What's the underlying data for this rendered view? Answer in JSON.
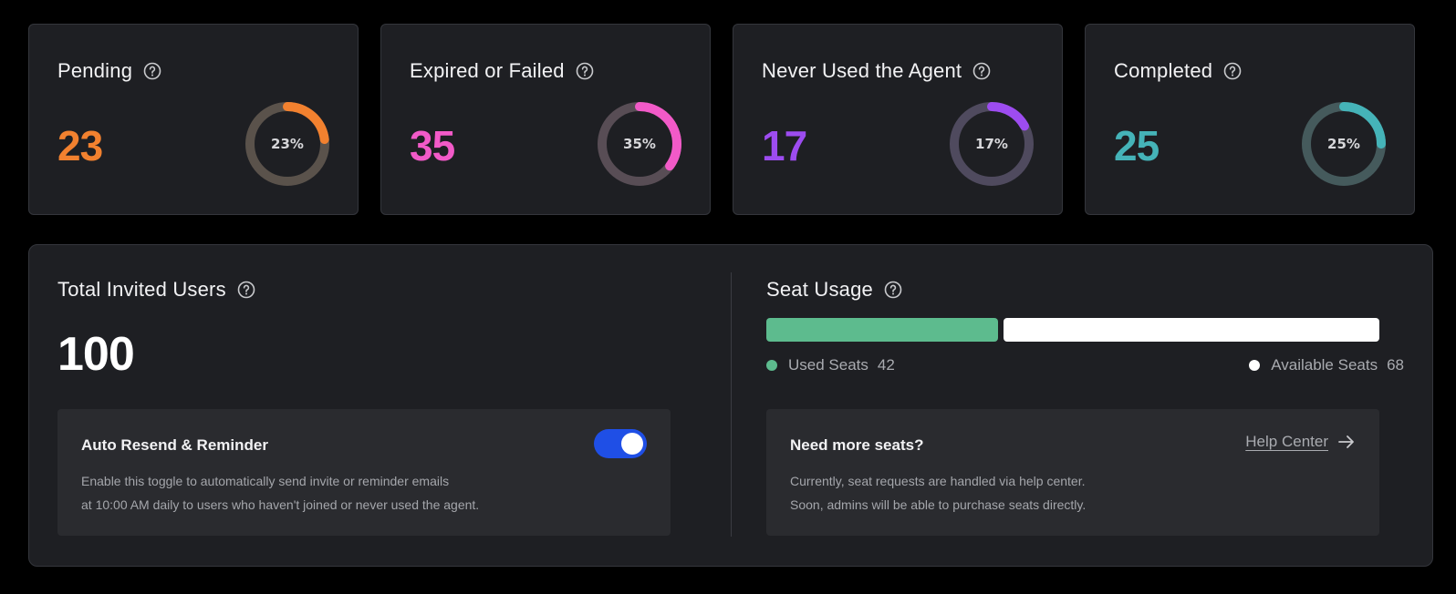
{
  "cards": [
    {
      "title": "Pending",
      "value": "23",
      "percent_label": "23%",
      "percent": 23,
      "color": "#f2812f",
      "track": "#5a524b"
    },
    {
      "title": "Expired or Failed",
      "value": "35",
      "percent_label": "35%",
      "percent": 35,
      "color": "#f25ac8",
      "track": "#584d55"
    },
    {
      "title": "Never Used the Agent",
      "value": "17",
      "percent_label": "17%",
      "percent": 17,
      "color": "#9d4cf0",
      "track": "#4f4a5e"
    },
    {
      "title": "Completed",
      "value": "25",
      "percent_label": "25%",
      "percent": 25,
      "color": "#45b3b8",
      "track": "#455a5c"
    }
  ],
  "total": {
    "title": "Total Invited Users",
    "value": "100",
    "auto_resend": {
      "title": "Auto Resend & Reminder",
      "line1": "Enable this toggle to automatically send invite or reminder emails",
      "line2": "at 10:00 AM daily to users who haven't joined or never used the agent.",
      "enabled": true
    }
  },
  "seats": {
    "title": "Seat Usage",
    "used_label": "Used Seats",
    "used_value": "42",
    "used": 42,
    "available_label": "Available Seats",
    "available_value": "68",
    "available": 68,
    "used_color": "#5dbb8e",
    "available_color": "#ffffff",
    "more": {
      "title": "Need more seats?",
      "link": "Help Center",
      "line1": "Currently, seat requests are handled via help center.",
      "line2": "Soon, admins will be able to purchase seats directly."
    }
  },
  "icons": {
    "help": "question-circle-icon",
    "arrow": "arrow-right-icon"
  }
}
